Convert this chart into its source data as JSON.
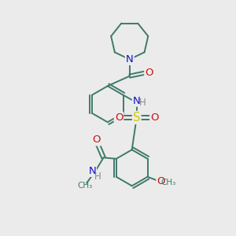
{
  "bg_color": "#ebebeb",
  "bond_color": "#3d7a6a",
  "bond_width": 1.4,
  "atom_colors": {
    "N": "#1010cc",
    "O": "#cc1010",
    "S": "#cccc00",
    "H": "#888888",
    "C": "#3d7a6a"
  },
  "font_size": 8.5
}
